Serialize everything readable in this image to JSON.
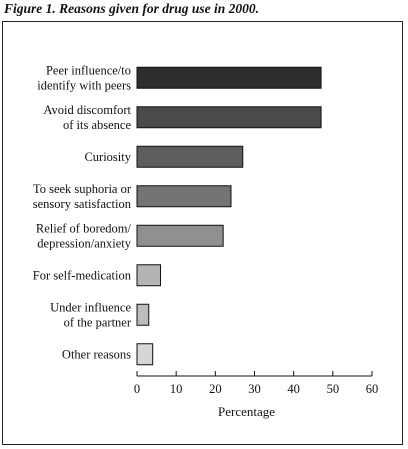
{
  "figure": {
    "title": "Figure 1. Reasons given for drug use in 2000."
  },
  "chart_data": {
    "type": "bar",
    "orientation": "horizontal",
    "title": "Figure 1. Reasons given for drug use in 2000.",
    "xlabel": "Percentage",
    "ylabel": "",
    "xlim": [
      0,
      60
    ],
    "xticks": [
      0,
      10,
      20,
      30,
      40,
      50,
      60
    ],
    "grid": false,
    "legend": "none",
    "categories": [
      [
        "Peer influence/to",
        "identify with peers"
      ],
      [
        "Avoid discomfort",
        "of its absence"
      ],
      [
        "Curiosity"
      ],
      [
        "To seek suphoria or",
        "sensory satisfaction"
      ],
      [
        "Relief of boredom/",
        "depression/anxiety"
      ],
      [
        "For self-medication"
      ],
      [
        "Under influence",
        "of the partner"
      ],
      [
        "Other reasons"
      ]
    ],
    "values": [
      47,
      47,
      27,
      24,
      22,
      6,
      3,
      4
    ],
    "colors": [
      "#2e2e2e",
      "#4a4a4a",
      "#5e5e5e",
      "#747474",
      "#909090",
      "#b4b4b4",
      "#bdbdbd",
      "#d6d6d6"
    ]
  }
}
